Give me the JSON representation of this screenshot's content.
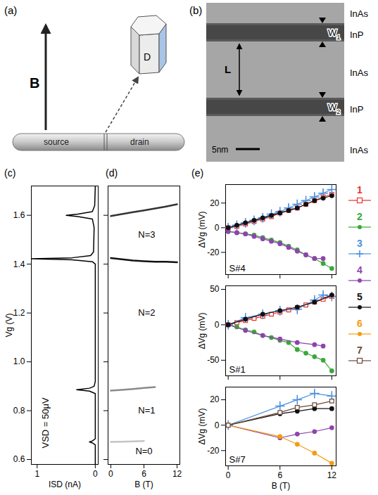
{
  "panel_a": {
    "label": "(a)",
    "field": "B",
    "dot": "D",
    "source": "source",
    "drain": "drain"
  },
  "panel_b": {
    "label": "(b)",
    "layers": [
      "InAs",
      "InP",
      "InAs",
      "InP",
      "InAs"
    ],
    "widths": [
      "W1",
      "W2"
    ],
    "length": "L",
    "scale_bar": "5nm"
  },
  "chart_data": [
    {
      "type": "line",
      "title": "(c)",
      "xlabel": "ISD (nA)",
      "ylabel": "Vg (V)",
      "xlim": [
        1.1,
        -0.05
      ],
      "xticks": [
        1,
        0
      ],
      "ylim": [
        0.58,
        1.72
      ],
      "yticks": [
        0.6,
        0.8,
        {
          "value": 1,
          "label": "1.0"
        },
        1.2,
        1.4,
        1.6
      ],
      "series": [
        {
          "color": "#000000",
          "x": [
            0,
            0,
            0.05,
            0.1,
            0.05,
            0,
            0,
            0.1,
            0.32,
            0.1,
            0.02,
            0,
            0,
            0.05,
            0.4,
            1.1,
            0.4,
            0.08,
            0.03,
            0.02,
            0.05,
            0.3,
            0.5,
            0.3,
            0.05,
            0.01,
            0
          ],
          "values": [
            0.58,
            0.66,
            0.668,
            0.672,
            0.676,
            0.685,
            0.87,
            0.88,
            0.886,
            0.892,
            0.9,
            0.92,
            1.4,
            1.41,
            1.418,
            1.422,
            1.426,
            1.435,
            1.45,
            1.55,
            1.585,
            1.595,
            1.6,
            1.605,
            1.615,
            1.64,
            1.72
          ]
        }
      ],
      "annotations": [
        {
          "text": "VSD = 50μV",
          "x": 0.85,
          "y": 0.75
        }
      ]
    },
    {
      "type": "line",
      "title": "(d)",
      "xlabel": "B (T)",
      "tick_labels": "x",
      "xlim": [
        -0.5,
        12.5
      ],
      "xticks": [
        0,
        6,
        12
      ],
      "ylim": [
        0.58,
        1.72
      ],
      "yticks": [
        0.6,
        0.8,
        {
          "value": 1,
          "label": "1.0"
        },
        1.2,
        1.4,
        1.6
      ],
      "series": [
        {
          "color": "#c4c4c4",
          "x": [
            0,
            2,
            4,
            6
          ],
          "values": [
            0.672,
            0.673,
            0.674,
            0.676
          ]
        },
        {
          "color": "#8a8a8a",
          "x": [
            0,
            2,
            4,
            6,
            8
          ],
          "values": [
            0.882,
            0.885,
            0.889,
            0.893,
            0.897
          ]
        },
        {
          "color": "#111111",
          "x": [
            0,
            2,
            4,
            6,
            8,
            10,
            12
          ],
          "values": [
            1.425,
            1.42,
            1.415,
            1.412,
            1.41,
            1.41,
            1.408
          ]
        },
        {
          "color": "#333333",
          "x": [
            0,
            2,
            4,
            6,
            8,
            10,
            12
          ],
          "values": [
            1.597,
            1.605,
            1.613,
            1.62,
            1.628,
            1.636,
            1.645
          ]
        }
      ],
      "annotations": [
        {
          "text": "N=0",
          "x": 6,
          "y": 0.635
        },
        {
          "text": "N=1",
          "x": 6.5,
          "y": 0.8
        },
        {
          "text": "N=2",
          "x": 6.5,
          "y": 1.2
        },
        {
          "text": "N=3",
          "x": 6.5,
          "y": 1.52
        }
      ]
    },
    {
      "type": "line",
      "title": "(e)",
      "ylabel": "ΔVg (mV)",
      "tick_labels": "y",
      "legend": "right",
      "xlim": [
        -0.3,
        12.5
      ],
      "xticks": [
        0,
        6,
        12
      ],
      "ylim": [
        -38,
        35
      ],
      "yticks": [
        -20,
        0,
        20
      ],
      "annotations": [
        {
          "text": "S#4"
        }
      ],
      "series": [
        {
          "name": "1",
          "color": "#e8322f",
          "marker": "square",
          "x": [
            0,
            1,
            2,
            3,
            4,
            5,
            6,
            7,
            8,
            9,
            10,
            11,
            12
          ],
          "values": [
            0,
            1,
            3,
            5,
            7,
            9,
            12,
            14,
            16,
            19,
            22,
            25,
            27
          ]
        },
        {
          "name": "2",
          "color": "#3aa83a",
          "marker": "circle",
          "x": [
            0,
            1,
            2,
            3,
            4,
            5,
            6,
            7,
            8,
            9,
            10,
            11,
            12
          ],
          "values": [
            -3,
            -4,
            -5,
            -6,
            -8,
            -10,
            -12,
            -15,
            -18,
            -22,
            -25,
            -29,
            -33
          ]
        },
        {
          "name": "3",
          "color": "#4a90e2",
          "marker": "plus",
          "x": [
            0,
            1,
            2,
            3,
            4,
            5,
            6,
            7,
            8,
            9,
            10,
            11,
            12
          ],
          "values": [
            0,
            2,
            4,
            6,
            8,
            11,
            13,
            16,
            19,
            22,
            25,
            28,
            31
          ],
          "errors": [
            3,
            3,
            3,
            3,
            3,
            3,
            3,
            3,
            3,
            3,
            3,
            3,
            3
          ]
        },
        {
          "name": "4",
          "color": "#8e44ad",
          "marker": "circle",
          "x": [
            0,
            1,
            2,
            3,
            4,
            5,
            6,
            7,
            8,
            9,
            10,
            11
          ],
          "values": [
            -3,
            -4,
            -5,
            -7,
            -9,
            -11,
            -13,
            -16,
            -19,
            -22,
            -25,
            -25
          ]
        },
        {
          "name": "5",
          "color": "#111111",
          "marker": "circle",
          "x": [
            0,
            1,
            2,
            3,
            4,
            5,
            6,
            7,
            8,
            9,
            10,
            11,
            12
          ],
          "values": [
            0,
            2,
            4,
            6,
            8,
            10,
            12,
            14,
            16,
            19,
            22,
            24,
            26
          ]
        }
      ]
    },
    {
      "type": "line",
      "ylabel": "ΔVg (mV)",
      "tick_labels": "y",
      "xlim": [
        -0.3,
        12.5
      ],
      "xticks": [
        0,
        6,
        12
      ],
      "ylim": [
        -72,
        55
      ],
      "yticks": [
        -50,
        0,
        50
      ],
      "annotations": [
        {
          "text": "S#1"
        }
      ],
      "series": [
        {
          "name": "1",
          "color": "#e8322f",
          "marker": "square",
          "x": [
            0,
            1,
            2,
            3,
            4,
            5,
            6,
            7,
            8,
            9,
            10,
            11,
            12
          ],
          "values": [
            0,
            3,
            6,
            9,
            12,
            15,
            18,
            21,
            24,
            28,
            32,
            36,
            40
          ]
        },
        {
          "name": "2",
          "color": "#3aa83a",
          "marker": "circle",
          "x": [
            0,
            1,
            2,
            3,
            4,
            5,
            6,
            7,
            8,
            9,
            10,
            11,
            12
          ],
          "values": [
            0,
            -3,
            -7,
            -10,
            -15,
            -18,
            -22,
            -25,
            -35,
            -40,
            -45,
            -50,
            -65
          ]
        },
        {
          "name": "3",
          "color": "#4a90e2",
          "marker": "plus",
          "x": [
            0,
            2,
            4,
            6,
            8,
            10,
            11,
            12
          ],
          "values": [
            0,
            10,
            15,
            20,
            22,
            35,
            42,
            40
          ],
          "errors": [
            4,
            4,
            4,
            4,
            4,
            4,
            4,
            4
          ]
        },
        {
          "name": "4",
          "color": "#8e44ad",
          "marker": "circle",
          "x": [
            0,
            2,
            4,
            6,
            8,
            10,
            11
          ],
          "values": [
            0,
            -8,
            -15,
            -20,
            -25,
            -28,
            -30
          ]
        },
        {
          "name": "5",
          "color": "#111111",
          "marker": "circle",
          "x": [
            0,
            2,
            4,
            6,
            8,
            10,
            12
          ],
          "values": [
            0,
            8,
            15,
            20,
            25,
            32,
            42
          ]
        }
      ]
    },
    {
      "type": "line",
      "xlabel": "B (T)",
      "ylabel": "ΔVg (mV)",
      "xlim": [
        -0.3,
        12.5
      ],
      "xticks": [
        0,
        6,
        12
      ],
      "ylim": [
        -32,
        30
      ],
      "yticks": [
        -20,
        0,
        20
      ],
      "annotations": [
        {
          "text": "S#7"
        }
      ],
      "series": [
        {
          "name": "3",
          "color": "#4a90e2",
          "marker": "plus",
          "x": [
            0,
            6,
            8,
            10,
            12
          ],
          "values": [
            0,
            15,
            20,
            25,
            23
          ],
          "errors": [
            1,
            2,
            2,
            2,
            2
          ]
        },
        {
          "name": "4",
          "color": "#8e44ad",
          "marker": "circle",
          "x": [
            0,
            6,
            8,
            10,
            12
          ],
          "values": [
            0,
            -10,
            -7,
            -5,
            -2
          ]
        },
        {
          "name": "5",
          "color": "#111111",
          "marker": "circle",
          "x": [
            0,
            6,
            8,
            10,
            12
          ],
          "values": [
            0,
            9,
            11,
            13,
            13
          ]
        },
        {
          "name": "6",
          "color": "#f39c12",
          "marker": "circle",
          "x": [
            0,
            6,
            8,
            10,
            12
          ],
          "values": [
            0,
            -9,
            -15,
            -22,
            -30
          ]
        },
        {
          "name": "7",
          "color": "#6b4a3a",
          "marker": "square",
          "x": [
            0,
            6,
            8,
            10,
            12
          ],
          "values": [
            0,
            10,
            14,
            16,
            19
          ]
        }
      ]
    }
  ]
}
